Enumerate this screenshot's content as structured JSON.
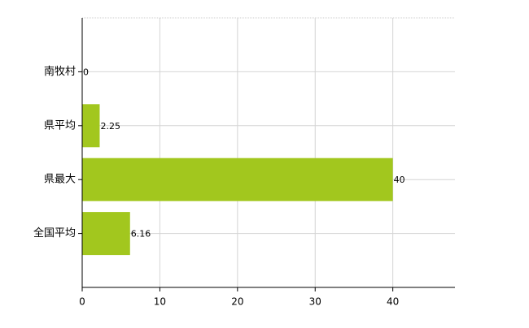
{
  "chart_data": {
    "type": "hbar",
    "categories": [
      "南牧村",
      "県平均",
      "県最大",
      "全国平均"
    ],
    "values": [
      0,
      2.25,
      40,
      6.16
    ],
    "color": "#a2c71e",
    "xlim": [
      0,
      48
    ],
    "xticks": [
      0,
      10,
      20,
      30,
      40
    ],
    "grid": true
  }
}
